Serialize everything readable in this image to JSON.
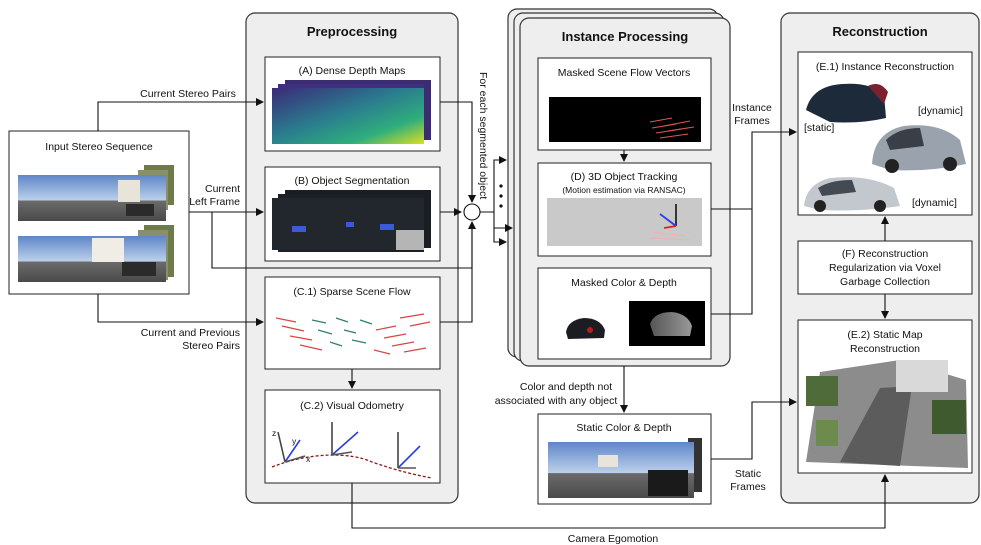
{
  "panels": {
    "preprocessing": "Preprocessing",
    "instance_processing": "Instance Processing",
    "reconstruction": "Reconstruction"
  },
  "input": {
    "title": "Input Stereo Sequence"
  },
  "boxes": {
    "dense_depth": "(A) Dense Depth Maps",
    "object_segmentation": "(B) Object Segmentation",
    "sparse_scene_flow": "(C.1) Sparse Scene Flow",
    "visual_odometry": "(C.2) Visual Odometry",
    "masked_scene_flow": "Masked Scene Flow Vectors",
    "object_tracking": "(D) 3D Object Tracking",
    "object_tracking_sub": "(Motion estimation via RANSAC)",
    "masked_color_depth": "Masked Color & Depth",
    "static_color_depth": "Static Color & Depth",
    "instance_reconstruction": "(E.1) Instance Reconstruction",
    "regularization_line1": "(F) Reconstruction",
    "regularization_line2": "Regularization via Voxel",
    "regularization_line3": "Garbage Collection",
    "static_map_line1": "(E.2) Static Map",
    "static_map_line2": "Reconstruction"
  },
  "instance_tags": {
    "static": "[static]",
    "dynamic_top": "[dynamic]",
    "dynamic_bottom": "[dynamic]"
  },
  "edge_labels": {
    "current_stereo_pairs": "Current Stereo Pairs",
    "current_left_frame_1": "Current",
    "current_left_frame_2": "Left Frame",
    "current_prev_pairs_1": "Current and Previous",
    "current_prev_pairs_2": "Stereo Pairs",
    "for_each_object": "For each segmented object",
    "instance_frames_1": "Instance",
    "instance_frames_2": "Frames",
    "color_depth_not_assoc_1": "Color and depth not",
    "color_depth_not_assoc_2": "associated with any object",
    "static_frames_1": "Static",
    "static_frames_2": "Frames",
    "camera_egomotion": "Camera Egomotion"
  },
  "odometry_axes": {
    "x": "x",
    "y": "y",
    "z": "z"
  }
}
